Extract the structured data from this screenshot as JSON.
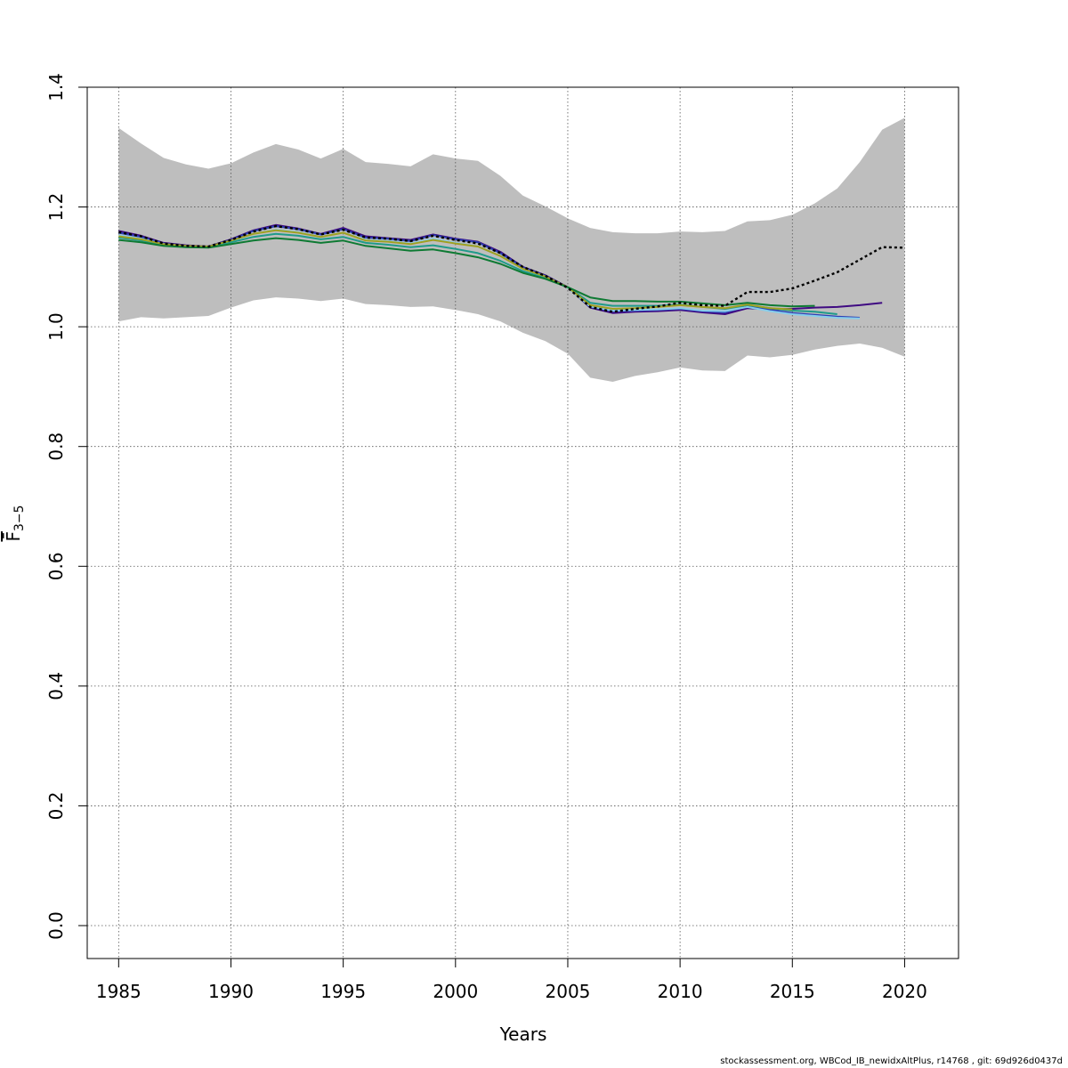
{
  "chart_data": {
    "type": "line",
    "xlabel": "Years",
    "ylabel": "F̄",
    "ylabel_sub": "3−5",
    "xlim": [
      1983.6,
      2022.4
    ],
    "ylim": [
      -0.055,
      1.4
    ],
    "x_ticks": [
      1985,
      1990,
      1995,
      2000,
      2005,
      2010,
      2015,
      2020
    ],
    "y_ticks": [
      0.0,
      0.2,
      0.4,
      0.6,
      0.8,
      1.0,
      1.2,
      1.4
    ],
    "y_tick_labels": [
      "0.0",
      "0.2",
      "0.4",
      "0.6",
      "0.8",
      "1.0",
      "1.2",
      "1.4"
    ],
    "grid": true,
    "band": {
      "color": "#bebebe",
      "x": [
        1985,
        1986,
        1987,
        1988,
        1989,
        1990,
        1991,
        1992,
        1993,
        1994,
        1995,
        1996,
        1997,
        1998,
        1999,
        2000,
        2001,
        2002,
        2003,
        2004,
        2005,
        2006,
        2007,
        2008,
        2009,
        2010,
        2011,
        2012,
        2013,
        2014,
        2015,
        2016,
        2017,
        2018,
        2019,
        2020
      ],
      "upper": [
        1.332,
        1.306,
        1.282,
        1.271,
        1.264,
        1.273,
        1.291,
        1.305,
        1.296,
        1.281,
        1.297,
        1.275,
        1.272,
        1.268,
        1.288,
        1.281,
        1.277,
        1.252,
        1.219,
        1.201,
        1.181,
        1.165,
        1.158,
        1.156,
        1.156,
        1.159,
        1.158,
        1.16,
        1.176,
        1.178,
        1.187,
        1.206,
        1.231,
        1.275,
        1.329,
        1.349
      ],
      "lower": [
        1.009,
        1.016,
        1.014,
        1.016,
        1.018,
        1.032,
        1.044,
        1.049,
        1.047,
        1.043,
        1.047,
        1.038,
        1.036,
        1.033,
        1.034,
        1.028,
        1.021,
        1.009,
        0.99,
        0.976,
        0.955,
        0.915,
        0.908,
        0.918,
        0.924,
        0.932,
        0.927,
        0.926,
        0.952,
        0.949,
        0.953,
        0.962,
        0.968,
        0.972,
        0.965,
        0.95
      ]
    },
    "series": [
      {
        "color": "#000000",
        "dashed": true,
        "x": [
          1985,
          1986,
          1987,
          1988,
          1989,
          1990,
          1991,
          1992,
          1993,
          1994,
          1995,
          1996,
          1997,
          1998,
          1999,
          2000,
          2001,
          2002,
          2003,
          2004,
          2005,
          2006,
          2007,
          2008,
          2009,
          2010,
          2011,
          2012,
          2013,
          2014,
          2015,
          2016,
          2017,
          2018,
          2019,
          2020
        ],
        "values": [
          1.158,
          1.151,
          1.139,
          1.135,
          1.134,
          1.145,
          1.159,
          1.168,
          1.163,
          1.154,
          1.162,
          1.149,
          1.147,
          1.143,
          1.152,
          1.145,
          1.139,
          1.123,
          1.1,
          1.085,
          1.065,
          1.033,
          1.025,
          1.03,
          1.034,
          1.04,
          1.036,
          1.035,
          1.058,
          1.058,
          1.064,
          1.077,
          1.091,
          1.112,
          1.133,
          1.132
        ]
      },
      {
        "color": "#3f0a82",
        "dashed": false,
        "x": [
          1985,
          1986,
          1987,
          1988,
          1989,
          1990,
          1991,
          1992,
          1993,
          1994,
          1995,
          1996,
          1997,
          1998,
          1999,
          2000,
          2001,
          2002,
          2003,
          2004,
          2005,
          2006,
          2007,
          2008,
          2009,
          2010,
          2011,
          2012,
          2013,
          2014,
          2015,
          2016,
          2017,
          2018,
          2019
        ],
        "values": [
          1.16,
          1.152,
          1.14,
          1.136,
          1.134,
          1.146,
          1.161,
          1.17,
          1.164,
          1.155,
          1.165,
          1.151,
          1.148,
          1.145,
          1.154,
          1.147,
          1.142,
          1.125,
          1.1,
          1.086,
          1.066,
          1.032,
          1.023,
          1.025,
          1.026,
          1.028,
          1.024,
          1.021,
          1.031,
          1.029,
          1.03,
          1.032,
          1.033,
          1.036,
          1.04
        ]
      },
      {
        "color": "#2c3fb4",
        "dashed": false,
        "x": [
          1985,
          1986,
          1987,
          1988,
          1989,
          1990,
          1991,
          1992,
          1993,
          1994,
          1995,
          1996,
          1997,
          1998,
          1999,
          2000,
          2001,
          2002,
          2003,
          2004,
          2005,
          2006,
          2007,
          2008,
          2009,
          2010,
          2011,
          2012,
          2013,
          2014,
          2015,
          2016,
          2017,
          2018
        ],
        "values": [
          1.157,
          1.15,
          1.139,
          1.135,
          1.134,
          1.145,
          1.16,
          1.168,
          1.163,
          1.154,
          1.163,
          1.149,
          1.147,
          1.143,
          1.153,
          1.146,
          1.141,
          1.123,
          1.099,
          1.085,
          1.066,
          1.033,
          1.026,
          1.027,
          1.028,
          1.03,
          1.026,
          1.024,
          1.034,
          1.028,
          1.023,
          1.02,
          1.017,
          1.015
        ]
      },
      {
        "color": "#87ceeb",
        "dashed": false,
        "x": [
          1985,
          1986,
          1987,
          1988,
          1989,
          1990,
          1991,
          1992,
          1993,
          1994,
          1995,
          1996,
          1997,
          1998,
          1999,
          2000,
          2001,
          2002,
          2003,
          2004,
          2005,
          2006,
          2007,
          2008,
          2009,
          2010,
          2011,
          2012,
          2013,
          2014,
          2015,
          2016,
          2017,
          2018
        ],
        "values": [
          1.153,
          1.147,
          1.138,
          1.134,
          1.133,
          1.143,
          1.155,
          1.162,
          1.158,
          1.15,
          1.157,
          1.145,
          1.143,
          1.139,
          1.147,
          1.14,
          1.134,
          1.118,
          1.097,
          1.083,
          1.065,
          1.034,
          1.027,
          1.028,
          1.029,
          1.031,
          1.027,
          1.026,
          1.033,
          1.026,
          1.021,
          1.018,
          1.015,
          1.014
        ]
      },
      {
        "color": "#1f9b8a",
        "dashed": false,
        "x": [
          1985,
          1986,
          1987,
          1988,
          1989,
          1990,
          1991,
          1992,
          1993,
          1994,
          1995,
          1996,
          1997,
          1998,
          1999,
          2000,
          2001,
          2002,
          2003,
          2004,
          2005,
          2006,
          2007,
          2008,
          2009,
          2010,
          2011,
          2012,
          2013,
          2014,
          2015,
          2016,
          2017
        ],
        "values": [
          1.149,
          1.144,
          1.137,
          1.134,
          1.133,
          1.141,
          1.15,
          1.155,
          1.152,
          1.146,
          1.15,
          1.14,
          1.137,
          1.133,
          1.136,
          1.13,
          1.123,
          1.11,
          1.093,
          1.081,
          1.066,
          1.04,
          1.035,
          1.035,
          1.035,
          1.037,
          1.033,
          1.03,
          1.036,
          1.031,
          1.027,
          1.025,
          1.021
        ]
      },
      {
        "color": "#a0a020",
        "dashed": false,
        "x": [
          1985,
          1986,
          1987,
          1988,
          1989,
          1990,
          1991,
          1992,
          1993,
          1994,
          1995,
          1996,
          1997,
          1998,
          1999,
          2000,
          2001,
          2002,
          2003,
          2004,
          2005,
          2006,
          2007,
          2008,
          2009,
          2010,
          2011,
          2012,
          2013,
          2014,
          2015
        ],
        "values": [
          1.151,
          1.146,
          1.138,
          1.135,
          1.134,
          1.144,
          1.155,
          1.161,
          1.157,
          1.15,
          1.157,
          1.144,
          1.142,
          1.138,
          1.145,
          1.139,
          1.134,
          1.118,
          1.097,
          1.084,
          1.066,
          1.036,
          1.03,
          1.031,
          1.033,
          1.036,
          1.033,
          1.031,
          1.037,
          1.031,
          1.029
        ]
      },
      {
        "color": "#0e7a33",
        "dashed": false,
        "x": [
          1985,
          1986,
          1987,
          1988,
          1989,
          1990,
          1991,
          1992,
          1993,
          1994,
          1995,
          1996,
          1997,
          1998,
          1999,
          2000,
          2001,
          2002,
          2003,
          2004,
          2005,
          2006,
          2007,
          2008,
          2009,
          2010,
          2011,
          2012,
          2013,
          2014,
          2015,
          2016
        ],
        "values": [
          1.145,
          1.141,
          1.135,
          1.133,
          1.132,
          1.138,
          1.144,
          1.148,
          1.145,
          1.14,
          1.144,
          1.135,
          1.131,
          1.127,
          1.129,
          1.123,
          1.116,
          1.105,
          1.09,
          1.08,
          1.066,
          1.049,
          1.043,
          1.043,
          1.042,
          1.042,
          1.039,
          1.036,
          1.04,
          1.036,
          1.034,
          1.035
        ]
      }
    ]
  },
  "footer": "stockassessment.org, WBCod_IB_newidxAltPlus, r14768 , git: 69d926d0437d"
}
